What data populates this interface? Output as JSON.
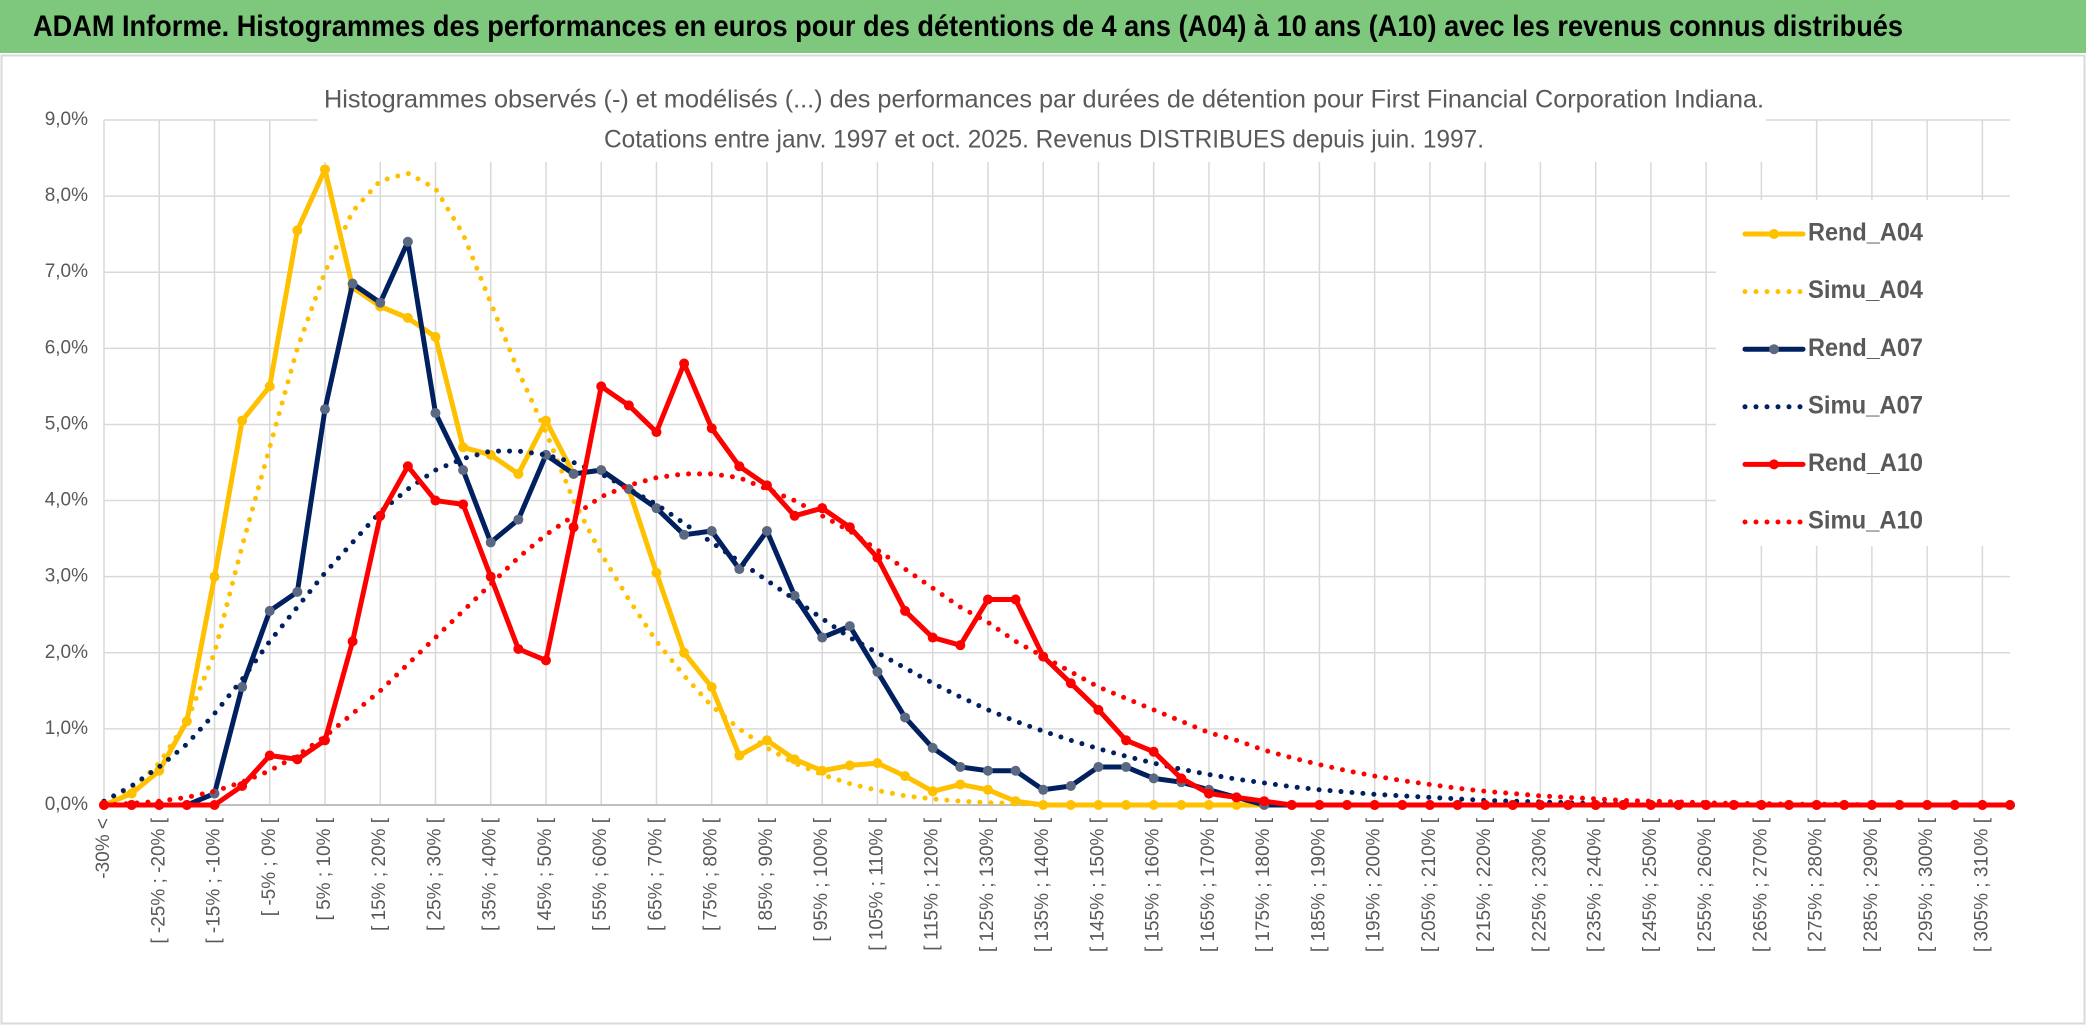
{
  "header": {
    "title": "ADAM Informe. Histogrammes des performances en euros pour des détentions de 4 ans (A04) à 10 ans (A10) avec les revenus connus distribués"
  },
  "chart_data": {
    "type": "line",
    "title": [
      "Histogrammes observés (-) et modélisés (...) des performances par durées de détention pour First Financial Corporation Indiana.",
      "Cotations entre janv. 1997 et oct. 2025. Revenus DISTRIBUES depuis juin. 1997."
    ],
    "categories": [
      "-30% <",
      null,
      "[ -25% ; -20% [",
      null,
      "[ -15% ; -10% [",
      null,
      "[ -5% ; 0% [",
      null,
      "[ 5% ; 10% [",
      null,
      "[ 15% ; 20% [",
      null,
      "[ 25% ; 30% [",
      null,
      "[ 35% ; 40% [",
      null,
      "[ 45% ; 50% [",
      null,
      "[ 55% ; 60% [",
      null,
      "[ 65% ; 70% [",
      null,
      "[ 75% ; 80% [",
      null,
      "[ 85% ; 90% [",
      null,
      "[ 95% ; 100% [",
      null,
      "[ 105% ; 110% [",
      null,
      "[ 115% ; 120% [",
      null,
      "[ 125% ; 130% [",
      null,
      "[ 135% ; 140% [",
      null,
      "[ 145% ; 150% [",
      null,
      "[ 155% ; 160% [",
      null,
      "[ 165% ; 170% [",
      null,
      "[ 175% ; 180% [",
      null,
      "[ 185% ; 190% [",
      null,
      "[ 195% ; 200% [",
      null,
      "[ 205% ; 210% [",
      null,
      "[ 215% ; 220% [",
      null,
      "[ 225% ; 230% [",
      null,
      "[ 235% ; 240% [",
      null,
      "[ 245% ; 250% [",
      null,
      "[ 255% ; 260% [",
      null,
      "[ 265% ; 270% [",
      null,
      "[ 275% ; 280% [",
      null,
      "[ 285% ; 290% [",
      null,
      "[ 295% ; 300% [",
      null,
      "[ 305% ; 310% [",
      null
    ],
    "series": [
      {
        "name": "Rend_A04",
        "color": "#ffc000",
        "style": "solid",
        "markers": true,
        "marker_color": "#ffc000",
        "values": [
          0,
          0.15,
          0.45,
          1.1,
          3.0,
          5.05,
          5.5,
          7.55,
          8.35,
          6.8,
          6.55,
          6.4,
          6.15,
          4.7,
          4.6,
          4.35,
          5.05,
          4.35,
          4.4,
          4.15,
          3.05,
          2.0,
          1.55,
          0.65,
          0.85,
          0.6,
          0.45,
          0.52,
          0.55,
          0.38,
          0.18,
          0.27,
          0.2,
          0.05,
          0,
          0,
          0,
          0,
          0,
          0,
          0,
          0,
          0,
          0,
          0,
          0,
          0,
          0,
          0,
          0,
          0,
          0,
          0,
          0,
          0,
          0,
          0,
          0,
          0,
          0,
          0,
          0,
          0,
          0,
          0,
          0,
          0,
          0,
          0,
          0
        ]
      },
      {
        "name": "Simu_A04",
        "color": "#ffc000",
        "style": "dotted",
        "markers": false,
        "values": [
          0.05,
          0.2,
          0.55,
          1.1,
          2.0,
          3.4,
          4.7,
          6.0,
          7.0,
          7.8,
          8.2,
          8.3,
          8.1,
          7.5,
          6.6,
          5.7,
          4.9,
          4.0,
          3.3,
          2.7,
          2.15,
          1.7,
          1.3,
          1.0,
          0.75,
          0.55,
          0.4,
          0.28,
          0.19,
          0.12,
          0.08,
          0.05,
          0.03,
          0.02,
          0,
          0,
          0,
          0,
          0,
          0,
          0,
          0,
          0,
          0,
          0,
          0,
          0,
          0,
          0,
          0,
          0,
          0,
          0,
          0,
          0,
          0,
          0,
          0,
          0,
          0,
          0,
          0,
          0,
          0,
          0,
          0,
          0,
          0,
          0,
          0
        ]
      },
      {
        "name": "Rend_A07",
        "color": "#002060",
        "style": "solid",
        "markers": true,
        "marker_color": "#5b6882",
        "values": [
          0,
          0,
          0,
          0,
          0.15,
          1.55,
          2.55,
          2.8,
          5.2,
          6.85,
          6.6,
          7.4,
          5.15,
          4.4,
          3.45,
          3.75,
          4.6,
          4.35,
          4.4,
          4.15,
          3.9,
          3.55,
          3.6,
          3.1,
          3.6,
          2.75,
          2.2,
          2.35,
          1.75,
          1.15,
          0.75,
          0.5,
          0.45,
          0.45,
          0.2,
          0.25,
          0.5,
          0.5,
          0.35,
          0.3,
          0.2,
          0.1,
          0,
          0,
          0,
          0,
          0,
          0,
          0,
          0,
          0,
          0,
          0,
          0,
          0,
          0,
          0,
          0,
          0,
          0,
          0,
          0,
          0,
          0,
          0,
          0,
          0,
          0,
          0,
          0
        ]
      },
      {
        "name": "Simu_A07",
        "color": "#002060",
        "style": "dotted",
        "markers": false,
        "values": [
          0.05,
          0.25,
          0.5,
          0.8,
          1.2,
          1.65,
          2.15,
          2.6,
          3.05,
          3.45,
          3.85,
          4.15,
          4.4,
          4.55,
          4.65,
          4.65,
          4.6,
          4.5,
          4.35,
          4.15,
          3.95,
          3.7,
          3.45,
          3.2,
          2.95,
          2.7,
          2.45,
          2.2,
          2.0,
          1.8,
          1.6,
          1.42,
          1.25,
          1.1,
          0.97,
          0.85,
          0.74,
          0.64,
          0.55,
          0.47,
          0.4,
          0.34,
          0.29,
          0.24,
          0.2,
          0.17,
          0.14,
          0.12,
          0.1,
          0.08,
          0.06,
          0.05,
          0.04,
          0.03,
          0.02,
          0.02,
          0.01,
          0.01,
          0.01,
          0.01,
          0,
          0,
          0,
          0,
          0,
          0,
          0,
          0,
          0,
          0
        ]
      },
      {
        "name": "Rend_A10",
        "color": "#ff0000",
        "style": "solid",
        "markers": true,
        "marker_color": "#ff0000",
        "values": [
          0,
          0,
          0,
          0,
          0,
          0.25,
          0.65,
          0.6,
          0.85,
          2.15,
          3.8,
          4.45,
          4.0,
          3.95,
          3.0,
          2.05,
          1.9,
          3.65,
          5.5,
          5.25,
          4.9,
          5.8,
          4.95,
          4.45,
          4.2,
          3.8,
          3.9,
          3.65,
          3.25,
          2.55,
          2.2,
          2.1,
          2.7,
          2.7,
          1.95,
          1.6,
          1.25,
          0.85,
          0.7,
          0.35,
          0.15,
          0.1,
          0.05,
          0,
          0,
          0,
          0,
          0,
          0,
          0,
          0,
          0,
          0,
          0,
          0,
          0,
          0,
          0,
          0,
          0,
          0,
          0,
          0,
          0,
          0,
          0,
          0,
          0,
          0,
          0
        ]
      },
      {
        "name": "Simu_A10",
        "color": "#ff0000",
        "style": "dotted",
        "markers": false,
        "values": [
          0,
          0.02,
          0.05,
          0.1,
          0.18,
          0.3,
          0.45,
          0.65,
          0.9,
          1.2,
          1.5,
          1.85,
          2.2,
          2.55,
          2.9,
          3.25,
          3.55,
          3.8,
          4.05,
          4.2,
          4.3,
          4.35,
          4.35,
          4.3,
          4.15,
          4.0,
          3.8,
          3.6,
          3.35,
          3.1,
          2.85,
          2.6,
          2.4,
          2.15,
          1.95,
          1.75,
          1.55,
          1.4,
          1.25,
          1.1,
          0.95,
          0.85,
          0.72,
          0.62,
          0.53,
          0.45,
          0.38,
          0.32,
          0.27,
          0.22,
          0.18,
          0.15,
          0.12,
          0.1,
          0.08,
          0.06,
          0.05,
          0.04,
          0.03,
          0.02,
          0.02,
          0.01,
          0.01,
          0.01,
          0,
          0,
          0,
          0,
          0,
          0
        ]
      }
    ],
    "ylim": [
      0,
      9
    ],
    "yticks": [
      {
        "value": 0,
        "label": "0,0%"
      },
      {
        "value": 1,
        "label": "1,0%"
      },
      {
        "value": 2,
        "label": "2,0%"
      },
      {
        "value": 3,
        "label": "3,0%"
      },
      {
        "value": 4,
        "label": "4,0%"
      },
      {
        "value": 5,
        "label": "5,0%"
      },
      {
        "value": 6,
        "label": "6,0%"
      },
      {
        "value": 7,
        "label": "7,0%"
      },
      {
        "value": 8,
        "label": "8,0%"
      },
      {
        "value": 9,
        "label": "9,0%"
      }
    ],
    "grid": true,
    "legend": "right"
  }
}
